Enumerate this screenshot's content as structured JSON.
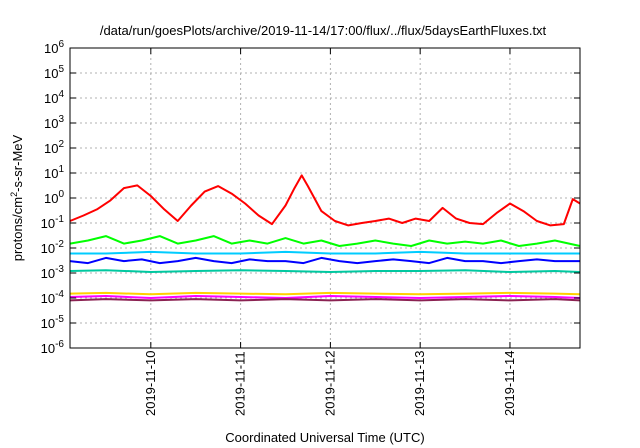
{
  "chart_data": {
    "type": "line",
    "title": "/data/run/goesPlots/archive/2019-11-14/17:00/flux/../flux/5daysEarthFluxes.txt",
    "xlabel": "Coordinated Universal Time (UTC)",
    "ylabel": {
      "base": "protons/cm",
      "sup": "2",
      "rest": "-s-sr-MeV"
    },
    "yscale": "log",
    "ylim_exp": [
      -6,
      6
    ],
    "xlim_days": [
      9.1,
      14.78
    ],
    "x_ticks": [
      {
        "day": 10,
        "label": "2019-11-10"
      },
      {
        "day": 11,
        "label": "2019-11-11"
      },
      {
        "day": 12,
        "label": "2019-11-12"
      },
      {
        "day": 13,
        "label": "2019-11-13"
      },
      {
        "day": 14,
        "label": "2019-11-14"
      }
    ],
    "y_ticks": [
      {
        "exp": 6,
        "base": "10",
        "sup": "6"
      },
      {
        "exp": 5,
        "base": "10",
        "sup": "5"
      },
      {
        "exp": 4,
        "base": "10",
        "sup": "4"
      },
      {
        "exp": 3,
        "base": "10",
        "sup": "3"
      },
      {
        "exp": 2,
        "base": "10",
        "sup": "2"
      },
      {
        "exp": 1,
        "base": "10",
        "sup": "1"
      },
      {
        "exp": 0,
        "base": "10",
        "sup": "0"
      },
      {
        "exp": -1,
        "base": "10",
        "sup": "-1"
      },
      {
        "exp": -2,
        "base": "10",
        "sup": "-2"
      },
      {
        "exp": -3,
        "base": "10",
        "sup": "-3"
      },
      {
        "exp": -4,
        "base": "10",
        "sup": "-4"
      },
      {
        "exp": -5,
        "base": "10",
        "sup": "-5"
      },
      {
        "exp": -6,
        "base": "10",
        "sup": "-6"
      }
    ],
    "grid": true,
    "series": [
      {
        "color": "#ff0000",
        "x": [
          9.1,
          9.25,
          9.4,
          9.55,
          9.7,
          9.85,
          10.0,
          10.15,
          10.3,
          10.45,
          10.6,
          10.75,
          10.9,
          11.05,
          11.2,
          11.35,
          11.5,
          11.6,
          11.68,
          11.75,
          11.9,
          12.05,
          12.2,
          12.35,
          12.5,
          12.65,
          12.8,
          12.95,
          13.1,
          13.25,
          13.4,
          13.55,
          13.7,
          13.85,
          14.0,
          14.15,
          14.3,
          14.45,
          14.6,
          14.7,
          14.78
        ],
        "y": [
          0.12,
          0.2,
          0.35,
          0.8,
          2.5,
          3.2,
          1.2,
          0.35,
          0.12,
          0.5,
          1.8,
          3.0,
          1.5,
          0.6,
          0.2,
          0.09,
          0.5,
          2.5,
          8.0,
          3.0,
          0.3,
          0.12,
          0.08,
          0.1,
          0.12,
          0.15,
          0.1,
          0.15,
          0.12,
          0.4,
          0.15,
          0.1,
          0.09,
          0.25,
          0.6,
          0.3,
          0.12,
          0.08,
          0.09,
          0.9,
          0.6
        ]
      },
      {
        "color": "#00ff00",
        "x": [
          9.1,
          9.3,
          9.5,
          9.7,
          9.9,
          10.1,
          10.3,
          10.5,
          10.7,
          10.9,
          11.1,
          11.3,
          11.5,
          11.7,
          11.9,
          12.1,
          12.3,
          12.5,
          12.7,
          12.9,
          13.1,
          13.3,
          13.5,
          13.7,
          13.9,
          14.1,
          14.3,
          14.5,
          14.78
        ],
        "y": [
          0.015,
          0.02,
          0.03,
          0.015,
          0.02,
          0.03,
          0.015,
          0.02,
          0.03,
          0.015,
          0.02,
          0.015,
          0.025,
          0.015,
          0.02,
          0.012,
          0.015,
          0.02,
          0.015,
          0.012,
          0.02,
          0.015,
          0.018,
          0.015,
          0.02,
          0.012,
          0.015,
          0.02,
          0.012
        ]
      },
      {
        "color": "#00ccff",
        "x": [
          9.1,
          9.5,
          10.0,
          10.5,
          11.0,
          11.5,
          12.0,
          12.5,
          13.0,
          13.5,
          14.0,
          14.5,
          14.78
        ],
        "y": [
          0.006,
          0.006,
          0.007,
          0.006,
          0.006,
          0.007,
          0.006,
          0.006,
          0.007,
          0.006,
          0.006,
          0.006,
          0.006
        ]
      },
      {
        "color": "#0000ff",
        "x": [
          9.1,
          9.3,
          9.5,
          9.7,
          9.9,
          10.1,
          10.3,
          10.5,
          10.7,
          10.9,
          11.1,
          11.3,
          11.5,
          11.7,
          11.9,
          12.1,
          12.3,
          12.5,
          12.7,
          12.9,
          13.1,
          13.3,
          13.5,
          13.7,
          13.9,
          14.1,
          14.3,
          14.5,
          14.78
        ],
        "y": [
          0.003,
          0.0025,
          0.004,
          0.003,
          0.0035,
          0.0025,
          0.003,
          0.004,
          0.003,
          0.0025,
          0.0035,
          0.003,
          0.003,
          0.0025,
          0.004,
          0.003,
          0.0025,
          0.003,
          0.0035,
          0.003,
          0.0025,
          0.004,
          0.003,
          0.003,
          0.0025,
          0.003,
          0.0035,
          0.003,
          0.003
        ]
      },
      {
        "color": "#00c8a0",
        "x": [
          9.1,
          9.5,
          10.0,
          10.5,
          11.0,
          11.5,
          12.0,
          12.5,
          13.0,
          13.5,
          14.0,
          14.5,
          14.78
        ],
        "y": [
          0.0012,
          0.0013,
          0.0011,
          0.0012,
          0.0013,
          0.0012,
          0.0011,
          0.0012,
          0.0012,
          0.0013,
          0.0011,
          0.0012,
          0.0011
        ]
      },
      {
        "color": "#ffd000",
        "x": [
          9.1,
          9.5,
          10.0,
          10.5,
          11.0,
          11.5,
          12.0,
          12.5,
          13.0,
          13.5,
          14.0,
          14.5,
          14.78
        ],
        "y": [
          0.00015,
          0.00016,
          0.00014,
          0.00016,
          0.00015,
          0.00014,
          0.00016,
          0.00015,
          0.00014,
          0.00015,
          0.00016,
          0.00015,
          0.00014
        ]
      },
      {
        "color": "#ff00ff",
        "x": [
          9.1,
          9.5,
          10.0,
          10.5,
          11.0,
          11.5,
          12.0,
          12.5,
          13.0,
          13.5,
          14.0,
          14.5,
          14.78
        ],
        "y": [
          0.00011,
          0.00012,
          0.0001,
          0.00012,
          0.00011,
          0.0001,
          0.00012,
          0.00011,
          0.0001,
          0.00011,
          0.00012,
          0.00011,
          0.0001
        ]
      },
      {
        "color": "#8b2252",
        "x": [
          9.1,
          9.5,
          10.0,
          10.5,
          11.0,
          11.5,
          12.0,
          12.5,
          13.0,
          13.5,
          14.0,
          14.5,
          14.78
        ],
        "y": [
          8e-05,
          9e-05,
          8e-05,
          9e-05,
          8e-05,
          9e-05,
          8e-05,
          9e-05,
          8e-05,
          9e-05,
          8e-05,
          9e-05,
          8e-05
        ]
      }
    ]
  }
}
